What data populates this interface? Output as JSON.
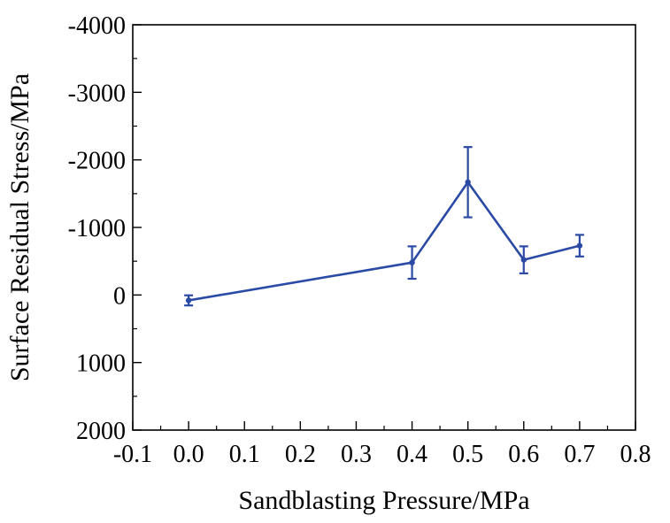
{
  "chart_data": {
    "type": "line",
    "xlabel": "Sandblasting Pressure/MPa",
    "ylabel": "Surface Residual Stress/MPa",
    "xlim": [
      -0.1,
      0.8
    ],
    "ylim": [
      2000,
      -4000
    ],
    "y_inverted": true,
    "x_ticks": [
      "-0.1",
      "0.0",
      "0.1",
      "0.2",
      "0.3",
      "0.4",
      "0.5",
      "0.6",
      "0.7",
      "0.8"
    ],
    "y_ticks": [
      "-4000",
      "-3000",
      "-2000",
      "-1000",
      "0",
      "1000",
      "2000"
    ],
    "grid": false,
    "legend": "none",
    "series": [
      {
        "color": "#2b4aa6",
        "x": [
          0.0,
          0.4,
          0.5,
          0.6,
          0.7
        ],
        "y": [
          80,
          -480,
          -1670,
          -520,
          -730
        ],
        "error": [
          75,
          240,
          520,
          200,
          160
        ]
      }
    ]
  }
}
